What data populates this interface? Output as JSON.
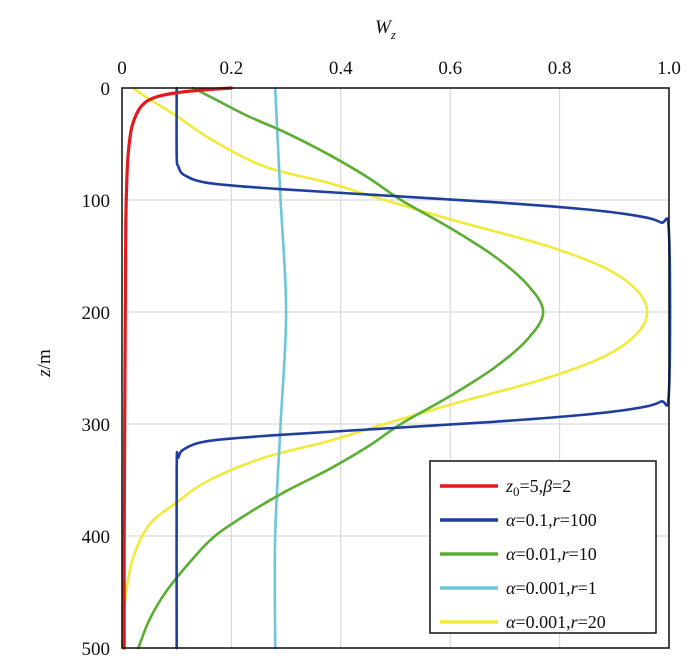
{
  "chart_data": {
    "type": "line",
    "xlabel": "W_z",
    "xlabel_main": "W",
    "xlabel_sub": "z",
    "ylabel": "z/m",
    "ylabel_italic": "z",
    "ylabel_rest": "/m",
    "xlim": [
      0,
      1.0
    ],
    "ylim": [
      0,
      500
    ],
    "y_inverted": true,
    "x_axis_position": "top",
    "grid": true,
    "legend_position": "bottom-right",
    "x_ticks": [
      {
        "value": 0,
        "label": "0"
      },
      {
        "value": 0.2,
        "label": "0.2"
      },
      {
        "value": 0.4,
        "label": "0.4"
      },
      {
        "value": 0.6,
        "label": "0.6"
      },
      {
        "value": 0.8,
        "label": "0.8"
      },
      {
        "value": 1.0,
        "label": "1.0"
      }
    ],
    "y_ticks": [
      {
        "value": 0,
        "label": "0"
      },
      {
        "value": 100,
        "label": "100"
      },
      {
        "value": 200,
        "label": "200"
      },
      {
        "value": 300,
        "label": "300"
      },
      {
        "value": 400,
        "label": "400"
      },
      {
        "value": 500,
        "label": "500"
      }
    ],
    "series": [
      {
        "name": "z0=5,β=2",
        "legend_parts": [
          {
            "t": "z",
            "i": true
          },
          {
            "t": "0",
            "sub": true
          },
          {
            "t": "=5,"
          },
          {
            "t": "β",
            "i": true
          },
          {
            "t": "=2"
          }
        ],
        "color": "#e31a1c",
        "points": [
          [
            0.2,
            0
          ],
          [
            0.12,
            3
          ],
          [
            0.07,
            7
          ],
          [
            0.045,
            12
          ],
          [
            0.03,
            20
          ],
          [
            0.018,
            35
          ],
          [
            0.012,
            55
          ],
          [
            0.009,
            80
          ],
          [
            0.007,
            120
          ],
          [
            0.006,
            200
          ],
          [
            0.005,
            300
          ],
          [
            0.004,
            400
          ],
          [
            0.004,
            500
          ]
        ]
      },
      {
        "name": "α=0.1,r=100",
        "legend_parts": [
          {
            "t": "α",
            "i": true
          },
          {
            "t": "=0.1,"
          },
          {
            "t": "r",
            "i": true
          },
          {
            "t": "=100"
          }
        ],
        "color": "#1f3f9e",
        "points": [
          [
            0.1,
            0
          ],
          [
            0.1,
            60
          ],
          [
            0.103,
            70
          ],
          [
            0.115,
            78
          ],
          [
            0.16,
            85
          ],
          [
            0.28,
            90
          ],
          [
            0.48,
            96
          ],
          [
            0.68,
            102
          ],
          [
            0.84,
            108
          ],
          [
            0.94,
            114
          ],
          [
            0.985,
            120
          ],
          [
            1.0,
            130
          ],
          [
            1.0,
            270
          ],
          [
            0.985,
            280
          ],
          [
            0.94,
            286
          ],
          [
            0.84,
            292
          ],
          [
            0.68,
            298
          ],
          [
            0.48,
            304
          ],
          [
            0.28,
            310
          ],
          [
            0.16,
            315
          ],
          [
            0.115,
            322
          ],
          [
            0.103,
            330
          ],
          [
            0.1,
            340
          ],
          [
            0.1,
            500
          ]
        ]
      },
      {
        "name": "α=0.01,r=10",
        "legend_parts": [
          {
            "t": "α",
            "i": true
          },
          {
            "t": "=0.01,"
          },
          {
            "t": "r",
            "i": true
          },
          {
            "t": "=10"
          }
        ],
        "color": "#5aae32",
        "points": [
          [
            0.13,
            0
          ],
          [
            0.17,
            10
          ],
          [
            0.23,
            25
          ],
          [
            0.3,
            40
          ],
          [
            0.38,
            60
          ],
          [
            0.45,
            80
          ],
          [
            0.51,
            100
          ],
          [
            0.6,
            125
          ],
          [
            0.68,
            150
          ],
          [
            0.74,
            175
          ],
          [
            0.77,
            200
          ],
          [
            0.74,
            225
          ],
          [
            0.68,
            250
          ],
          [
            0.6,
            275
          ],
          [
            0.51,
            300
          ],
          [
            0.45,
            320
          ],
          [
            0.38,
            340
          ],
          [
            0.3,
            360
          ],
          [
            0.23,
            380
          ],
          [
            0.17,
            400
          ],
          [
            0.13,
            420
          ],
          [
            0.08,
            450
          ],
          [
            0.05,
            475
          ],
          [
            0.03,
            500
          ]
        ]
      },
      {
        "name": "α=0.001,r=1",
        "legend_parts": [
          {
            "t": "α",
            "i": true
          },
          {
            "t": "=0.001,"
          },
          {
            "t": "r",
            "i": true
          },
          {
            "t": "=1"
          }
        ],
        "color": "#6fc6d6",
        "points": [
          [
            0.28,
            0
          ],
          [
            0.29,
            100
          ],
          [
            0.3,
            200
          ],
          [
            0.29,
            300
          ],
          [
            0.28,
            400
          ],
          [
            0.28,
            500
          ]
        ]
      },
      {
        "name": "α=0.001,r=20",
        "legend_parts": [
          {
            "t": "α",
            "i": true
          },
          {
            "t": "=0.001,"
          },
          {
            "t": "r",
            "i": true
          },
          {
            "t": "=20"
          }
        ],
        "color": "#f2ea3a",
        "points": [
          [
            0.02,
            0
          ],
          [
            0.05,
            10
          ],
          [
            0.1,
            25
          ],
          [
            0.16,
            45
          ],
          [
            0.26,
            70
          ],
          [
            0.38,
            85
          ],
          [
            0.48,
            100
          ],
          [
            0.62,
            120
          ],
          [
            0.77,
            140
          ],
          [
            0.88,
            160
          ],
          [
            0.94,
            180
          ],
          [
            0.96,
            200
          ],
          [
            0.94,
            220
          ],
          [
            0.88,
            240
          ],
          [
            0.77,
            260
          ],
          [
            0.62,
            280
          ],
          [
            0.48,
            300
          ],
          [
            0.38,
            315
          ],
          [
            0.26,
            330
          ],
          [
            0.16,
            350
          ],
          [
            0.1,
            370
          ],
          [
            0.05,
            390
          ],
          [
            0.02,
            420
          ],
          [
            0.005,
            460
          ],
          [
            0,
            500
          ]
        ]
      }
    ]
  }
}
